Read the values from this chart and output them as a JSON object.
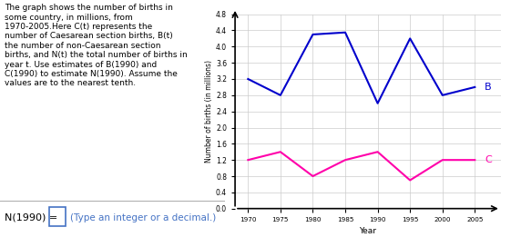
{
  "years": [
    1970,
    1975,
    1980,
    1985,
    1990,
    1995,
    2000,
    2005
  ],
  "B_values": [
    3.2,
    2.8,
    4.3,
    4.35,
    2.6,
    4.2,
    2.8,
    3.0
  ],
  "C_values": [
    1.2,
    1.4,
    0.8,
    1.2,
    1.4,
    0.7,
    1.2,
    1.2
  ],
  "B_color": "#0000cc",
  "C_color": "#ff00aa",
  "ylabel": "Number of births (in millions)",
  "xlabel": "Year",
  "ylim": [
    0,
    4.8
  ],
  "yticks": [
    0,
    0.4,
    0.8,
    1.2,
    1.6,
    2.0,
    2.4,
    2.8,
    3.2,
    3.6,
    4.0,
    4.4,
    4.8
  ],
  "xticks": [
    1970,
    1975,
    1980,
    1985,
    1990,
    1995,
    2000,
    2005
  ],
  "B_label": "B",
  "C_label": "C",
  "text_block": "The graph shows the number of births in\nsome country, in millions, from\n1970-2005.Here C(t) represents the\nnumber of Caesarean section births, B(t)\nthe number of non-Caesarean section\nbirths, and N(t) the total number of births in\nyear t. Use estimates of B(1990) and\nC(1990) to estimate N(1990). Assume the\nvalues are to the nearest tenth.",
  "answer_text": "N(1990) =",
  "answer_hint": "(Type an integer or a decimal.)",
  "background_color": "#ffffff"
}
